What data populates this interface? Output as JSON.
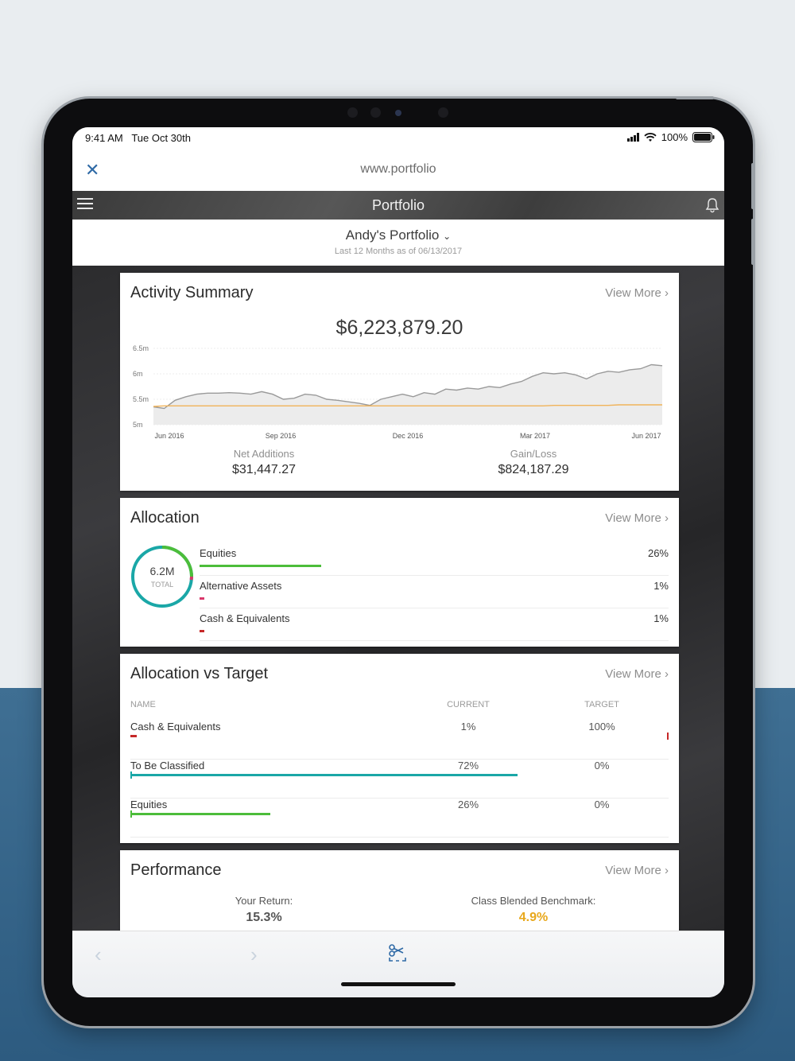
{
  "status_bar": {
    "time": "9:41 AM",
    "date": "Tue Oct 30th",
    "battery": "100%"
  },
  "browser": {
    "url": "www.portfolio",
    "close_icon": "close-icon"
  },
  "app": {
    "title": "Portfolio"
  },
  "selector": {
    "name": "Andy's Portfolio",
    "subtitle": "Last 12 Months as of 06/13/2017"
  },
  "activity": {
    "title": "Activity Summary",
    "view_more": "View More ›",
    "total": "$6,223,879.20",
    "net_additions_label": "Net Additions",
    "net_additions_value": "$31,447.27",
    "gain_loss_label": "Gain/Loss",
    "gain_loss_value": "$824,187.29"
  },
  "chart_data": {
    "type": "line",
    "x_ticks": [
      "Jun 2016",
      "Sep 2016",
      "Dec 2016",
      "Mar 2017",
      "Jun 2017"
    ],
    "y_ticks": [
      "6.5m",
      "6m",
      "5.5m",
      "5m"
    ],
    "ylim": [
      5.0,
      6.5
    ],
    "series": [
      {
        "color": "#9a9a9a",
        "values": [
          5.35,
          5.32,
          5.48,
          5.55,
          5.6,
          5.62,
          5.62,
          5.63,
          5.62,
          5.6,
          5.65,
          5.6,
          5.5,
          5.52,
          5.6,
          5.58,
          5.5,
          5.48,
          5.45,
          5.42,
          5.38,
          5.5,
          5.55,
          5.6,
          5.55,
          5.63,
          5.6,
          5.7,
          5.68,
          5.72,
          5.7,
          5.75,
          5.73,
          5.8,
          5.85,
          5.95,
          6.02,
          6.0,
          6.02,
          5.98,
          5.9,
          6.0,
          6.05,
          6.03,
          6.08,
          6.1,
          6.18,
          6.16
        ]
      },
      {
        "color": "#f0b35a",
        "values": [
          5.36,
          5.37,
          5.37,
          5.37,
          5.37,
          5.37,
          5.37,
          5.37,
          5.37,
          5.37,
          5.37,
          5.37,
          5.37,
          5.37,
          5.37,
          5.37,
          5.37,
          5.37,
          5.37,
          5.37,
          5.37,
          5.37,
          5.37,
          5.37,
          5.37,
          5.37,
          5.37,
          5.37,
          5.37,
          5.37,
          5.37,
          5.37,
          5.37,
          5.37,
          5.37,
          5.37,
          5.37,
          5.38,
          5.38,
          5.38,
          5.38,
          5.38,
          5.38,
          5.39,
          5.39,
          5.39,
          5.39,
          5.39
        ]
      }
    ]
  },
  "allocation": {
    "title": "Allocation",
    "view_more": "View More ›",
    "total_value": "6.2M",
    "total_label": "TOTAL",
    "items": [
      {
        "name": "Equities",
        "pct": "26%",
        "fraction": 0.26,
        "color": "#4cbd3a"
      },
      {
        "name": "Alternative Assets",
        "pct": "1%",
        "fraction": 0.01,
        "color": "#d9386b"
      },
      {
        "name": "Cash & Equivalents",
        "pct": "1%",
        "fraction": 0.01,
        "color": "#c62828"
      }
    ]
  },
  "avt": {
    "title": "Allocation vs Target",
    "view_more": "View More ›",
    "col_name": "NAME",
    "col_current": "CURRENT",
    "col_target": "TARGET",
    "rows": [
      {
        "name": "Cash & Equivalents",
        "current": "1%",
        "target": "100%",
        "current_fraction": 0.01,
        "target_fraction": 1.0,
        "color": "#c62828"
      },
      {
        "name": "To Be Classified",
        "current": "72%",
        "target": "0%",
        "current_fraction": 0.72,
        "target_fraction": 0.0,
        "color": "#1aa7a7"
      },
      {
        "name": "Equities",
        "current": "26%",
        "target": "0%",
        "current_fraction": 0.26,
        "target_fraction": 0.0,
        "color": "#4cbd3a"
      }
    ]
  },
  "performance": {
    "title": "Performance",
    "view_more": "View More ›",
    "your_return_label": "Your Return:",
    "your_return_value": "15.3%",
    "benchmark_label": "Class Blended Benchmark:",
    "benchmark_value": "4.9%",
    "benchmark_color": "#e8a81c"
  },
  "toolbar": {
    "back": "‹",
    "forward": "›",
    "tool_icon": "scissors-select-icon"
  }
}
